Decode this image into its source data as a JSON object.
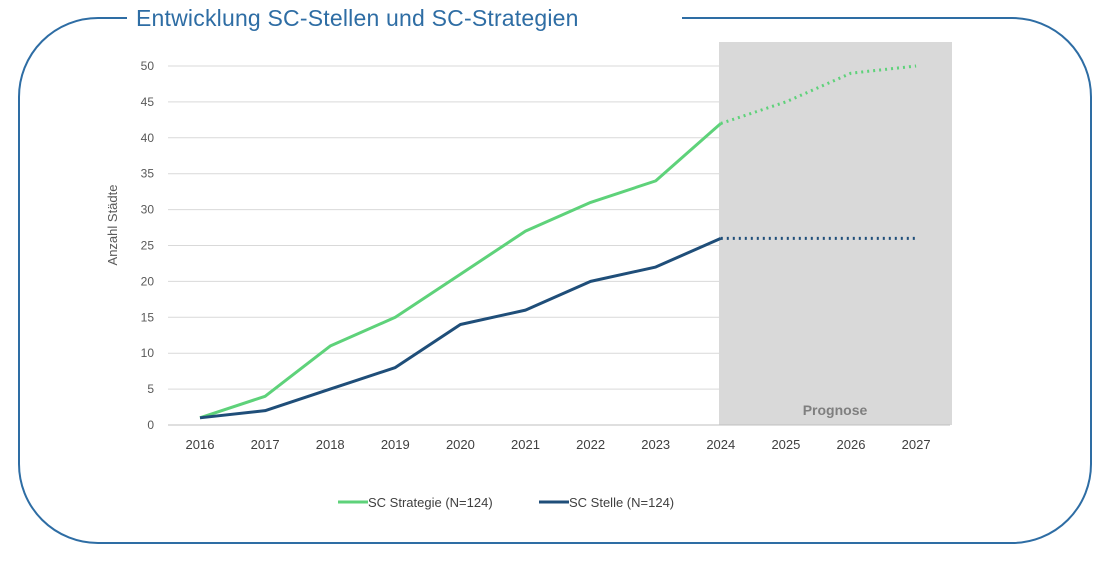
{
  "title": "Entwicklung SC-Stellen und SC-Strategien",
  "chart_data": {
    "type": "line",
    "categories": [
      "2016",
      "2017",
      "2018",
      "2019",
      "2020",
      "2021",
      "2022",
      "2023",
      "2024",
      "2025",
      "2026",
      "2027"
    ],
    "ylabel": "Anzahl Städte",
    "xlabel": "",
    "ylim": [
      0,
      50
    ],
    "yticks": [
      0,
      5,
      10,
      15,
      20,
      25,
      30,
      35,
      40,
      45,
      50
    ],
    "grid": true,
    "legend": "bottom",
    "forecast": {
      "label": "Prognose",
      "from": "2024",
      "to": "2027",
      "color": "#d9d9d9",
      "line_style": "dotted"
    },
    "series": [
      {
        "name": "SC Strategie (N=124)",
        "color": "#5ed27a",
        "values": [
          1,
          4,
          11,
          15,
          21,
          27,
          31,
          34,
          42,
          45,
          49,
          50
        ]
      },
      {
        "name": "SC Stelle (N=124)",
        "color": "#1f4e79",
        "values": [
          1,
          2,
          5,
          8,
          14,
          16,
          20,
          22,
          26,
          26,
          26,
          26
        ]
      }
    ]
  }
}
